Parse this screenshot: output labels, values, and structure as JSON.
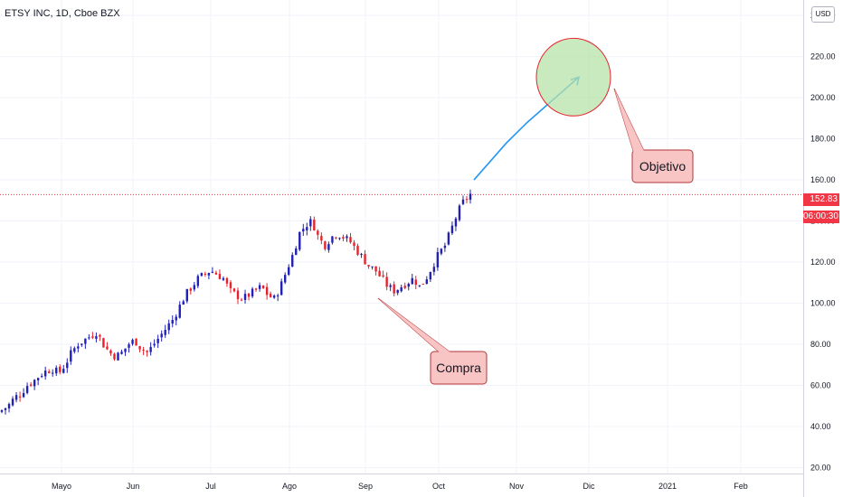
{
  "header": {
    "title": "ETSY INC, 1D, Cboe BZX",
    "currency": "USD"
  },
  "price_tags": {
    "last_price": "152.83",
    "countdown": "06:00:30",
    "color": "#f23645"
  },
  "colors": {
    "bull": "#2121b8",
    "bear": "#e8222c",
    "projection": "#2196f3"
  },
  "chart_data": {
    "type": "candlestick",
    "title": "ETSY INC, 1D, Cboe BZX",
    "y_unit": "USD",
    "ylim": [
      18,
      244
    ],
    "yticks": [
      "240.00",
      "220.00",
      "200.00",
      "180.00",
      "160.00",
      "140.00",
      "120.00",
      "100.00",
      "80.00",
      "60.00",
      "40.00",
      "20.00"
    ],
    "ytick_values": [
      240,
      220,
      200,
      180,
      160,
      140,
      120,
      100,
      80,
      60,
      40,
      20
    ],
    "xticks": [
      "Mayo",
      "Jun",
      "Jul",
      "Ago",
      "Sep",
      "Oct",
      "Nov",
      "Dic",
      "2021",
      "Feb"
    ],
    "grid": true,
    "last_price": 152.83,
    "close_path": [
      48,
      50,
      54,
      56,
      60,
      62,
      65,
      67,
      68,
      66,
      70,
      76,
      80,
      82,
      84,
      86,
      80,
      76,
      74,
      76,
      80,
      82,
      78,
      76,
      80,
      84,
      88,
      92,
      98,
      104,
      108,
      112,
      114,
      116,
      114,
      112,
      106,
      104,
      102,
      104,
      106,
      108,
      104,
      102,
      108,
      116,
      124,
      134,
      138,
      140,
      132,
      128,
      132,
      134,
      132,
      130,
      126,
      122,
      118,
      116,
      112,
      108,
      106,
      108,
      110,
      112,
      108,
      112,
      118,
      124,
      128,
      136,
      144,
      150,
      153
    ],
    "projection": [
      [
        153,
        160
      ],
      [
        189,
        178
      ],
      [
        165,
        188
      ],
      [
        211,
        210
      ]
    ],
    "target_zone": {
      "center_price": 210,
      "radius_price": 18
    },
    "annotations": [
      "Compra",
      "Objetivo"
    ]
  },
  "callouts": {
    "buy": "Compra",
    "target": "Objetivo"
  }
}
